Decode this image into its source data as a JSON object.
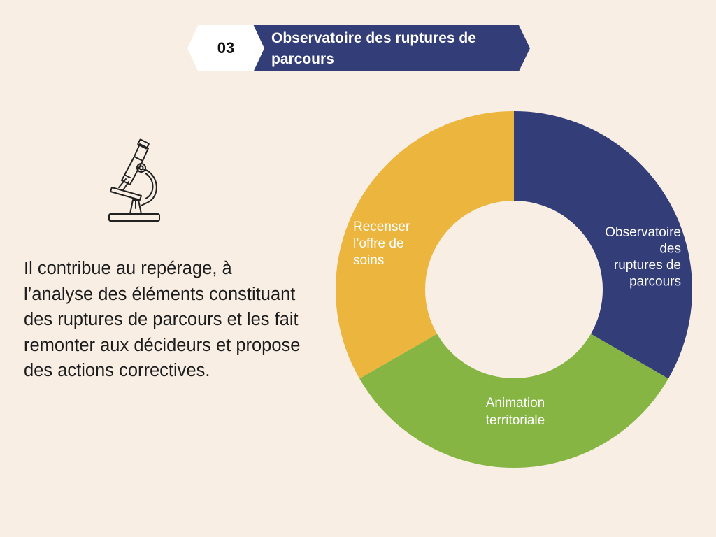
{
  "header": {
    "number": "03",
    "title": "Observatoire des ruptures de parcours"
  },
  "description": "Il contribue au repérage, à l’analyse des éléments constituant des ruptures de parcours et les fait remonter aux décideurs et propose des actions correctives.",
  "icons": {
    "illustration": "microscope-icon"
  },
  "colors": {
    "background": "#f8eee4",
    "navy": "#333d78",
    "green": "#86b543",
    "yellow": "#ecb53e"
  },
  "chart_data": {
    "type": "pie",
    "variant": "donut",
    "categories": [
      "Observatoire des ruptures de parcours",
      "Animation territoriale",
      "Recenser l’offre de soins"
    ],
    "values": [
      1,
      1,
      1
    ],
    "colors": [
      "#333d78",
      "#86b543",
      "#ecb53e"
    ],
    "labels": {
      "observatoire": [
        "Observatoire",
        "des",
        "ruptures de",
        "parcours"
      ],
      "animation": [
        "Animation",
        "territoriale"
      ],
      "recenser": [
        "Recenser",
        "l’offre de",
        "soins"
      ]
    }
  }
}
